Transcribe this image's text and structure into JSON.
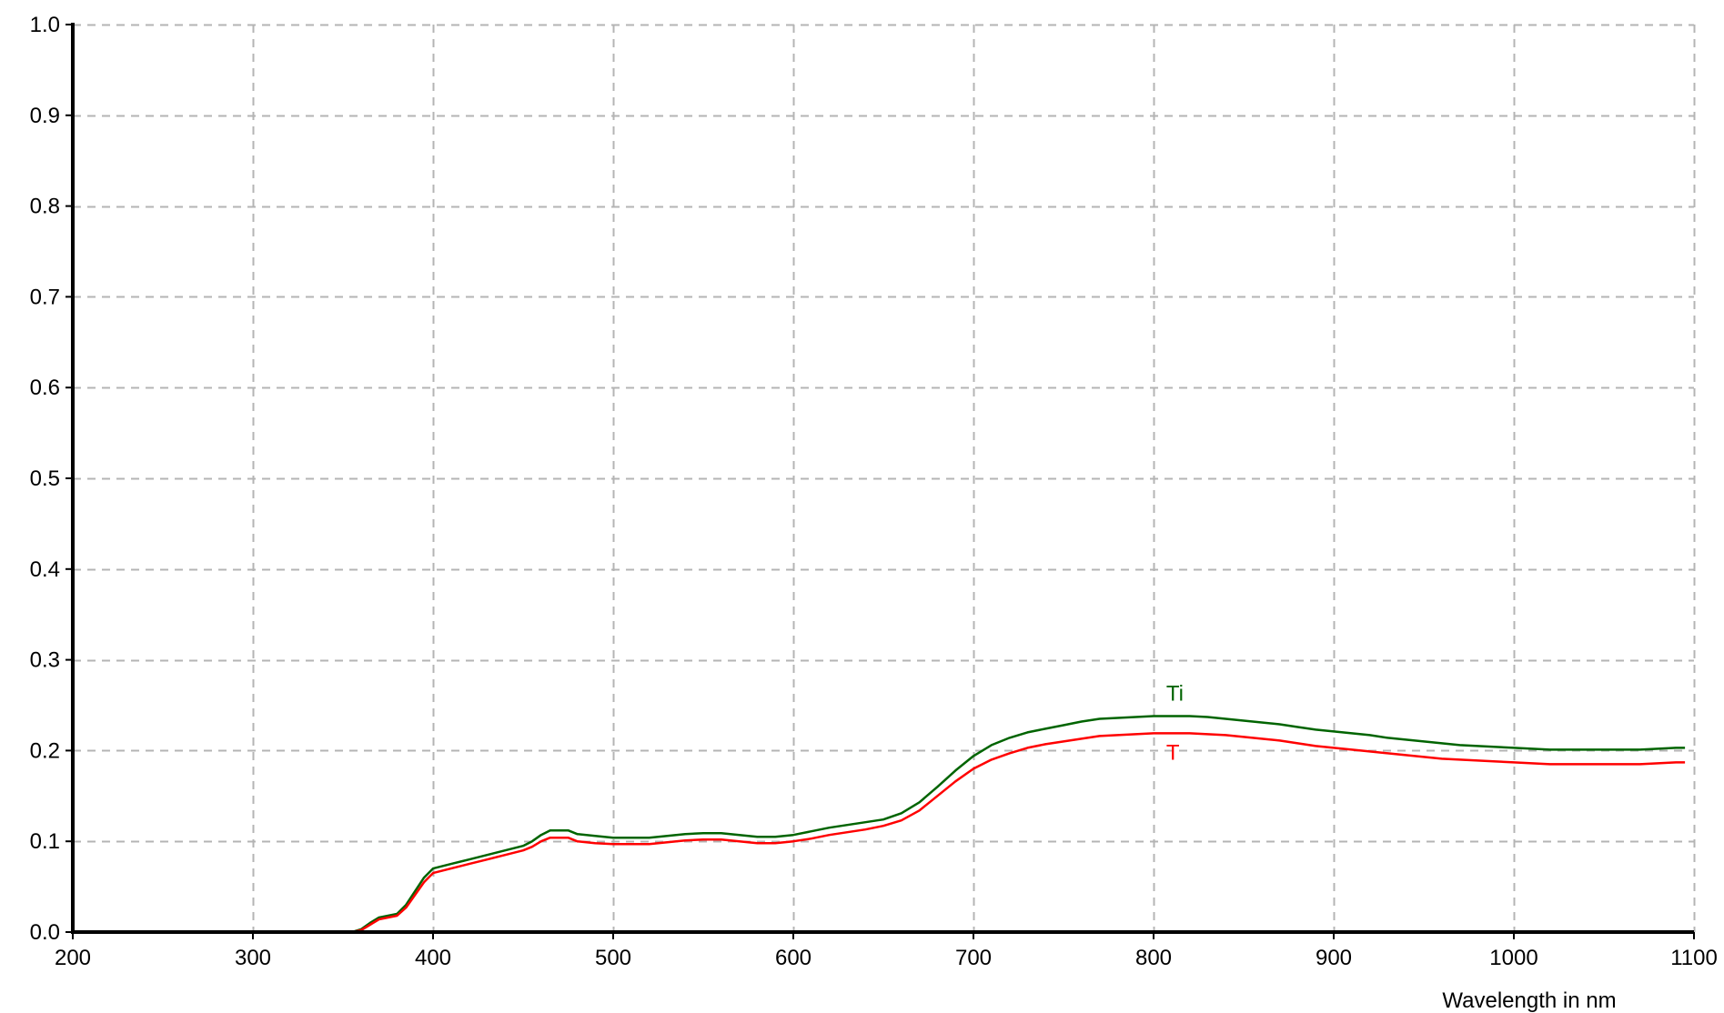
{
  "chart_data": {
    "type": "line",
    "title": "",
    "xlabel": "Wavelength in nm",
    "ylabel": "",
    "xlim": [
      200,
      1100
    ],
    "ylim": [
      0.0,
      1.0
    ],
    "x_ticks": [
      200,
      300,
      400,
      500,
      600,
      700,
      800,
      900,
      1000,
      1100
    ],
    "x_tick_labels": [
      "200",
      "300",
      "400",
      "500",
      "600",
      "700",
      "800",
      "900",
      "1000",
      "1100"
    ],
    "y_ticks": [
      0.0,
      0.1,
      0.2,
      0.3,
      0.4,
      0.5,
      0.6,
      0.7,
      0.8,
      0.9,
      1.0
    ],
    "y_tick_labels": [
      "0.0",
      "0.1",
      "0.2",
      "0.3",
      "0.4",
      "0.5",
      "0.6",
      "0.7",
      "0.8",
      "0.9",
      "1.0"
    ],
    "grid": true,
    "legend": "none",
    "series": [
      {
        "name": "Ti",
        "color": "#006400",
        "label_at": [
          807,
          0.255
        ],
        "points": [
          [
            200,
            0.0
          ],
          [
            355,
            0.0
          ],
          [
            360,
            0.003
          ],
          [
            365,
            0.01
          ],
          [
            370,
            0.016
          ],
          [
            375,
            0.018
          ],
          [
            380,
            0.02
          ],
          [
            385,
            0.03
          ],
          [
            390,
            0.045
          ],
          [
            395,
            0.06
          ],
          [
            400,
            0.07
          ],
          [
            410,
            0.075
          ],
          [
            420,
            0.08
          ],
          [
            430,
            0.085
          ],
          [
            440,
            0.09
          ],
          [
            450,
            0.095
          ],
          [
            455,
            0.1
          ],
          [
            460,
            0.107
          ],
          [
            465,
            0.112
          ],
          [
            475,
            0.112
          ],
          [
            480,
            0.108
          ],
          [
            490,
            0.106
          ],
          [
            500,
            0.104
          ],
          [
            510,
            0.104
          ],
          [
            520,
            0.104
          ],
          [
            530,
            0.106
          ],
          [
            540,
            0.108
          ],
          [
            550,
            0.109
          ],
          [
            560,
            0.109
          ],
          [
            570,
            0.107
          ],
          [
            580,
            0.105
          ],
          [
            590,
            0.105
          ],
          [
            600,
            0.107
          ],
          [
            610,
            0.111
          ],
          [
            620,
            0.115
          ],
          [
            630,
            0.118
          ],
          [
            640,
            0.121
          ],
          [
            650,
            0.124
          ],
          [
            660,
            0.131
          ],
          [
            670,
            0.143
          ],
          [
            680,
            0.16
          ],
          [
            690,
            0.178
          ],
          [
            700,
            0.194
          ],
          [
            710,
            0.206
          ],
          [
            720,
            0.214
          ],
          [
            730,
            0.22
          ],
          [
            740,
            0.224
          ],
          [
            750,
            0.228
          ],
          [
            760,
            0.232
          ],
          [
            770,
            0.235
          ],
          [
            780,
            0.236
          ],
          [
            790,
            0.237
          ],
          [
            800,
            0.238
          ],
          [
            810,
            0.238
          ],
          [
            820,
            0.238
          ],
          [
            830,
            0.237
          ],
          [
            840,
            0.235
          ],
          [
            850,
            0.233
          ],
          [
            860,
            0.231
          ],
          [
            870,
            0.229
          ],
          [
            880,
            0.226
          ],
          [
            890,
            0.223
          ],
          [
            900,
            0.221
          ],
          [
            910,
            0.219
          ],
          [
            920,
            0.217
          ],
          [
            930,
            0.214
          ],
          [
            940,
            0.212
          ],
          [
            950,
            0.21
          ],
          [
            960,
            0.208
          ],
          [
            970,
            0.206
          ],
          [
            980,
            0.205
          ],
          [
            990,
            0.204
          ],
          [
            1000,
            0.203
          ],
          [
            1010,
            0.202
          ],
          [
            1020,
            0.201
          ],
          [
            1030,
            0.201
          ],
          [
            1040,
            0.201
          ],
          [
            1050,
            0.201
          ],
          [
            1060,
            0.201
          ],
          [
            1070,
            0.201
          ],
          [
            1080,
            0.202
          ],
          [
            1090,
            0.203
          ],
          [
            1095,
            0.203
          ]
        ]
      },
      {
        "name": "T",
        "color": "#ff0000",
        "label_at": [
          807,
          0.19
        ],
        "points": [
          [
            200,
            0.0
          ],
          [
            355,
            0.0
          ],
          [
            360,
            0.002
          ],
          [
            365,
            0.008
          ],
          [
            370,
            0.014
          ],
          [
            375,
            0.016
          ],
          [
            380,
            0.018
          ],
          [
            385,
            0.027
          ],
          [
            390,
            0.041
          ],
          [
            395,
            0.055
          ],
          [
            400,
            0.065
          ],
          [
            410,
            0.07
          ],
          [
            420,
            0.075
          ],
          [
            430,
            0.08
          ],
          [
            440,
            0.085
          ],
          [
            450,
            0.09
          ],
          [
            455,
            0.094
          ],
          [
            460,
            0.1
          ],
          [
            465,
            0.104
          ],
          [
            475,
            0.104
          ],
          [
            480,
            0.1
          ],
          [
            490,
            0.098
          ],
          [
            500,
            0.097
          ],
          [
            510,
            0.097
          ],
          [
            520,
            0.097
          ],
          [
            530,
            0.099
          ],
          [
            540,
            0.101
          ],
          [
            550,
            0.102
          ],
          [
            560,
            0.102
          ],
          [
            570,
            0.1
          ],
          [
            580,
            0.098
          ],
          [
            590,
            0.098
          ],
          [
            600,
            0.1
          ],
          [
            610,
            0.103
          ],
          [
            620,
            0.107
          ],
          [
            630,
            0.11
          ],
          [
            640,
            0.113
          ],
          [
            650,
            0.117
          ],
          [
            660,
            0.123
          ],
          [
            670,
            0.134
          ],
          [
            680,
            0.15
          ],
          [
            690,
            0.166
          ],
          [
            700,
            0.18
          ],
          [
            710,
            0.19
          ],
          [
            720,
            0.197
          ],
          [
            730,
            0.203
          ],
          [
            740,
            0.207
          ],
          [
            750,
            0.21
          ],
          [
            760,
            0.213
          ],
          [
            770,
            0.216
          ],
          [
            780,
            0.217
          ],
          [
            790,
            0.218
          ],
          [
            800,
            0.219
          ],
          [
            810,
            0.219
          ],
          [
            820,
            0.219
          ],
          [
            830,
            0.218
          ],
          [
            840,
            0.217
          ],
          [
            850,
            0.215
          ],
          [
            860,
            0.213
          ],
          [
            870,
            0.211
          ],
          [
            880,
            0.208
          ],
          [
            890,
            0.205
          ],
          [
            900,
            0.203
          ],
          [
            910,
            0.201
          ],
          [
            920,
            0.199
          ],
          [
            930,
            0.197
          ],
          [
            940,
            0.195
          ],
          [
            950,
            0.193
          ],
          [
            960,
            0.191
          ],
          [
            970,
            0.19
          ],
          [
            980,
            0.189
          ],
          [
            990,
            0.188
          ],
          [
            1000,
            0.187
          ],
          [
            1010,
            0.186
          ],
          [
            1020,
            0.185
          ],
          [
            1030,
            0.185
          ],
          [
            1040,
            0.185
          ],
          [
            1050,
            0.185
          ],
          [
            1060,
            0.185
          ],
          [
            1070,
            0.185
          ],
          [
            1080,
            0.186
          ],
          [
            1090,
            0.187
          ],
          [
            1095,
            0.187
          ]
        ]
      }
    ]
  }
}
